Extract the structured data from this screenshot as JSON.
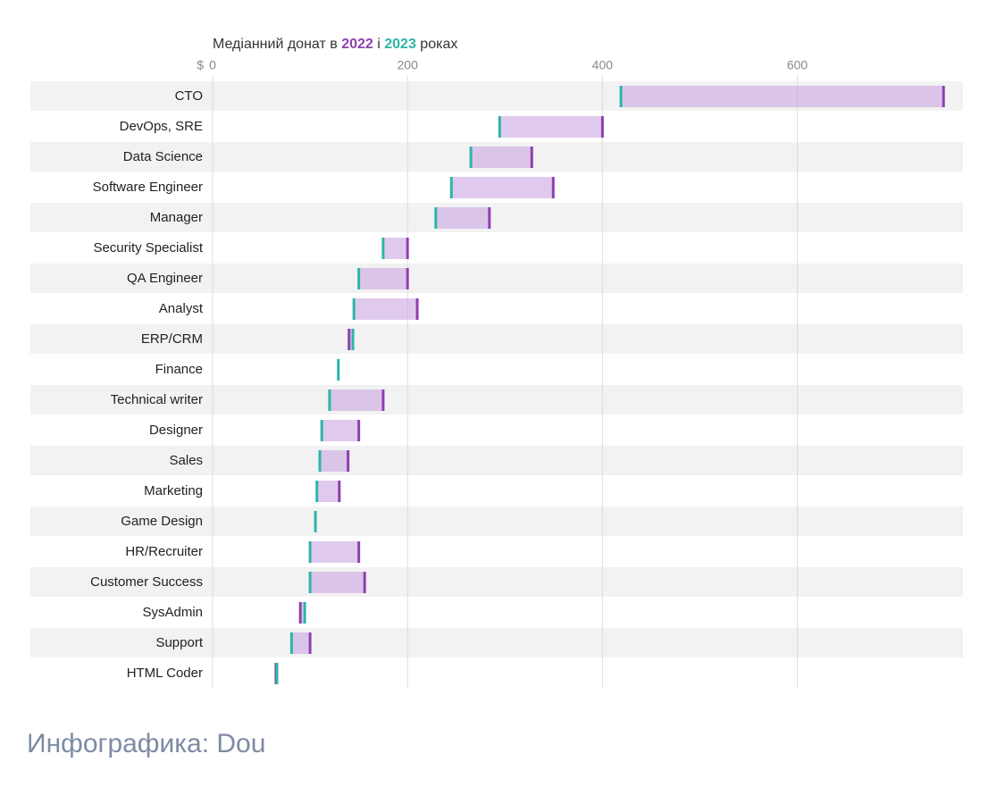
{
  "chart_data": {
    "type": "dumbbell",
    "title_start": "Медіанний донат в",
    "title_join": "і",
    "title_end": "роках",
    "x_unit": "$",
    "categories": [
      "CTO",
      "DevOps, SRE",
      "Data Science",
      "Software Engineer",
      "Manager",
      "Security Specialist",
      "QA Engineer",
      "Analyst",
      "ERP/CRM",
      "Finance",
      "Technical writer",
      "Designer",
      "Sales",
      "Marketing",
      "Game Design",
      "HR/Recruiter",
      "Customer Success",
      "SysAdmin",
      "Support",
      "HTML Coder"
    ],
    "series": [
      {
        "name": "2022",
        "color": "#8e3fb0",
        "values": [
          750,
          400,
          327.5,
          349.5,
          284,
          200,
          200,
          210,
          140,
          null,
          175,
          150,
          139,
          130,
          null,
          150,
          156,
          90,
          100,
          65
        ]
      },
      {
        "name": "2023",
        "color": "#2bb5a8",
        "values": [
          419,
          294.5,
          265,
          245,
          229,
          175,
          150,
          145,
          144,
          129,
          120,
          112,
          110,
          107,
          105.5,
          100,
          100,
          94.5,
          81,
          66
        ]
      }
    ],
    "range_color": "#c9a6e3",
    "xlim": [
      0,
      770
    ],
    "xticks": [
      0,
      200,
      400,
      600
    ],
    "grid": true
  },
  "footer": "Инфографика: Dou"
}
